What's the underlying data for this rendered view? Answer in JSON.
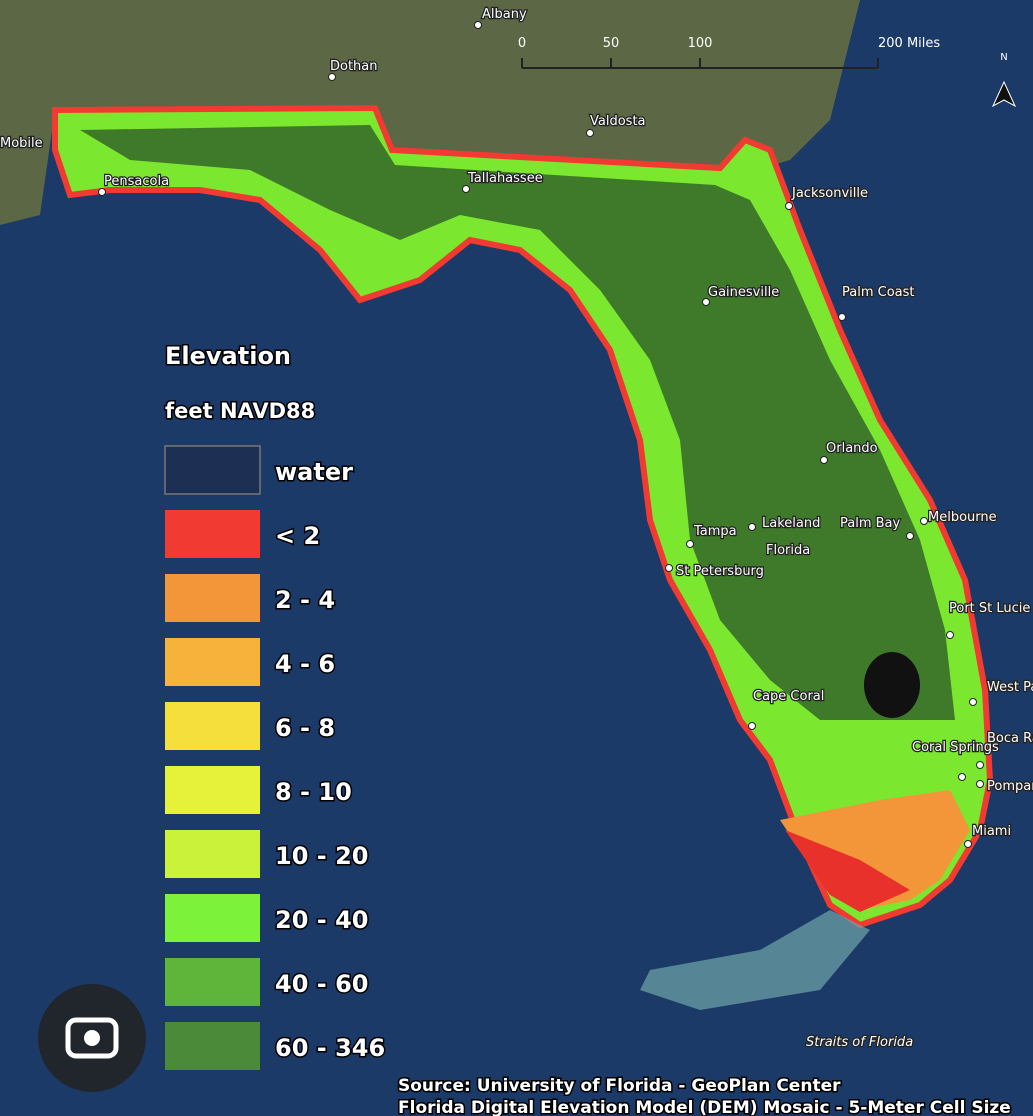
{
  "legend": {
    "title": "Elevation",
    "subtitle": "feet NAVD88",
    "items": [
      {
        "label": "water",
        "color": "#1d2f52"
      },
      {
        "label": "< 2",
        "color": "#f03a32"
      },
      {
        "label": "2 - 4",
        "color": "#f3963a"
      },
      {
        "label": "4 - 6",
        "color": "#f7b23c"
      },
      {
        "label": "6 - 8",
        "color": "#f5df3c"
      },
      {
        "label": "8 - 10",
        "color": "#e6f23a"
      },
      {
        "label": "10 - 20",
        "color": "#cbf23a"
      },
      {
        "label": "20 - 40",
        "color": "#7df23a"
      },
      {
        "label": "40 - 60",
        "color": "#5fb43a"
      },
      {
        "label": "60 - 346",
        "color": "#4a8a38"
      }
    ]
  },
  "places": [
    "Albany",
    "Dothan",
    "Valdosta",
    "Mobile",
    "Pensacola",
    "Tallahassee",
    "Jacksonville",
    "Gainesville",
    "Palm Coast",
    "Orlando",
    "Tampa",
    "Lakeland",
    "Palm Bay",
    "Melbourne",
    "Florida",
    "St Petersburg",
    "Port St Lucie",
    "West Palm Beach",
    "Cape Coral",
    "Coral Springs",
    "Boca Raton",
    "Pompano Beach",
    "Miami",
    "Straits of Florida"
  ],
  "scale": {
    "ticks": [
      0,
      50,
      100,
      {
        "value": 200,
        "label": "200 Miles"
      }
    ]
  },
  "north": "N",
  "source": [
    "Source: University of Florida - GeoPlan Center",
    "Florida Digital Elevation Model (DEM) Mosaic - 5-Meter Cell Size"
  ]
}
